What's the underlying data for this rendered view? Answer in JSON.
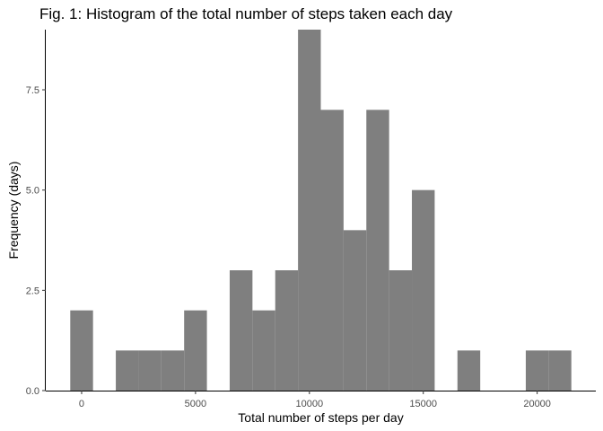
{
  "chart_data": {
    "type": "bar",
    "title": "Fig. 1: Histogram of the total number of steps taken each day",
    "xlabel": "Total number of steps per day",
    "ylabel": "Frequency (days)",
    "bin_width": 1000,
    "bins": [
      {
        "center": 0,
        "count": 2
      },
      {
        "center": 1000,
        "count": 0
      },
      {
        "center": 2000,
        "count": 1
      },
      {
        "center": 3000,
        "count": 1
      },
      {
        "center": 4000,
        "count": 1
      },
      {
        "center": 5000,
        "count": 2
      },
      {
        "center": 6000,
        "count": 0
      },
      {
        "center": 7000,
        "count": 3
      },
      {
        "center": 8000,
        "count": 2
      },
      {
        "center": 9000,
        "count": 3
      },
      {
        "center": 10000,
        "count": 9
      },
      {
        "center": 11000,
        "count": 7
      },
      {
        "center": 12000,
        "count": 4
      },
      {
        "center": 13000,
        "count": 7
      },
      {
        "center": 14000,
        "count": 3
      },
      {
        "center": 15000,
        "count": 5
      },
      {
        "center": 16000,
        "count": 0
      },
      {
        "center": 17000,
        "count": 1
      },
      {
        "center": 18000,
        "count": 0
      },
      {
        "center": 19000,
        "count": 0
      },
      {
        "center": 20000,
        "count": 1
      },
      {
        "center": 21000,
        "count": 1
      }
    ],
    "xlim": [
      -1575,
      22575
    ],
    "ylim": [
      0,
      9
    ],
    "xticks": [
      0,
      5000,
      10000,
      15000,
      20000
    ],
    "xtick_labels": [
      "0",
      "5000",
      "10000",
      "15000",
      "20000"
    ],
    "yticks": [
      0,
      2.5,
      5,
      7.5
    ],
    "ytick_labels": [
      "0.0",
      "2.5",
      "5.0",
      "7.5"
    ],
    "grid": false,
    "legend": "none",
    "colors": {
      "bar": "#7f7f7f",
      "axis": "#000000"
    }
  }
}
